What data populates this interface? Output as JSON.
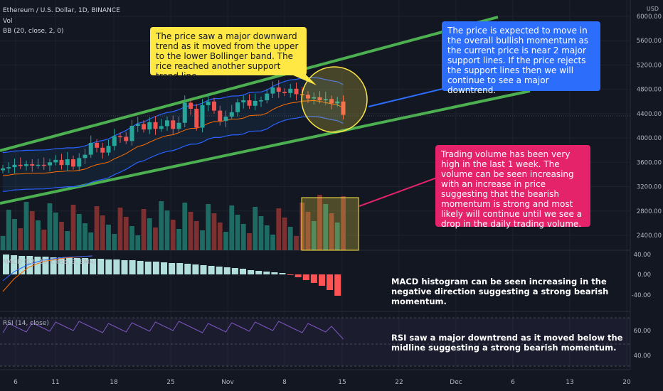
{
  "header": {
    "title": "Ethereum / U.S. Dollar, 1D, BINANCE",
    "vol_label": "Vol",
    "bb_label": "BB (20, close, 2, 0)",
    "currency": "USD"
  },
  "panes": {
    "macd_label": "MACD (12, 26, close, 9, EMA)",
    "rsi_label": "RSI (14, close)"
  },
  "annotations": {
    "yellow": "The price saw a major downward trend as it moved from the upper to the lower Bollinger band. The rice reached another support trend line.",
    "blue": "The price is expected to move in the overall bullish momentum as the current price is near 2 major support lines. If the price rejects the support lines then we will continue to see a major downtrend.",
    "pink": "Trading volume has been very high in the last 1 week. The volume can be seen increasing with an increase in price suggesting that the bearish momentum is strong and most likely will continue until we see a drop in the daily trading volume.",
    "macd": "MACD histogram can be seen increasing in the negative direction suggesting a strong bearish momentum.",
    "rsi": "RSI saw a major downtrend as it moved below the midline suggesting a strong bearish momentum."
  },
  "chart_data": {
    "type": "candlestick",
    "title": "Ethereum / U.S. Dollar, 1D, BINANCE",
    "price_axis": {
      "ticks": [
        "6000.00",
        "5600.00",
        "5200.00",
        "4800.00",
        "4400.00",
        "4000.00",
        "3600.00",
        "3200.00",
        "2800.00",
        "2400.00"
      ],
      "range": [
        2100,
        6100
      ]
    },
    "x_axis_ticks": [
      "6",
      "11",
      "18",
      "25",
      "Nov",
      "8",
      "15",
      "22",
      "Dec",
      "6",
      "13",
      "20"
    ],
    "candles_close": [
      3500,
      3520,
      3560,
      3540,
      3570,
      3545,
      3560,
      3550,
      3600,
      3640,
      3555,
      3650,
      3530,
      3670,
      3725,
      3920,
      3840,
      3760,
      3870,
      4030,
      4020,
      3950,
      4200,
      4230,
      4140,
      4260,
      4150,
      4195,
      4290,
      4150,
      4250,
      4580,
      4480,
      4170,
      4540,
      4600,
      4450,
      4280,
      4350,
      4425,
      4585,
      4620,
      4530,
      4610,
      4620,
      4730,
      4830,
      4760,
      4740,
      4810,
      4720,
      4710,
      4650,
      4670,
      4620,
      4640,
      4570,
      4600,
      4380
    ],
    "macd_axis": {
      "ticks": [
        "40.00",
        "0.00",
        "-40.00"
      ]
    },
    "rsi_axis": {
      "ticks": [
        "60.00",
        "40.00"
      ]
    },
    "trendlines": [
      "upper channel",
      "lower channel"
    ],
    "legend": "none",
    "grid": true
  },
  "colors": {
    "bg": "#131722",
    "up": "#26a69a",
    "down": "#ef5350",
    "trend": "#4caf50",
    "bb_upper": "#2962ff",
    "bb_basis": "#ff6d00",
    "vol_up": "#1e6b63",
    "vol_down": "#7e2f30",
    "macd_pos": "#b2dfdb",
    "macd_neg": "#ff5252",
    "rsi_line": "#7e57c2"
  }
}
